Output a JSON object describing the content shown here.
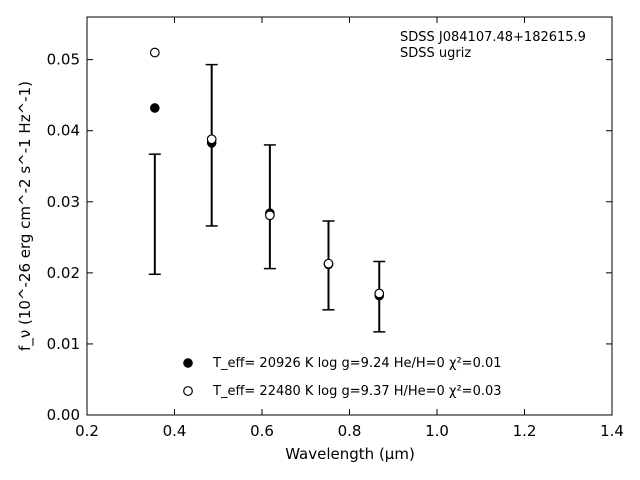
{
  "chart_data": {
    "type": "scatter",
    "xlabel": "Wavelength (μm)",
    "ylabel": "f_ν (10^-26 erg cm^-2 s^-1 Hz^-1)",
    "xlim": [
      0.2,
      1.4
    ],
    "ylim": [
      0.0,
      0.056
    ],
    "x_ticks": [
      "0.2",
      "0.4",
      "0.6",
      "0.8",
      "1.0",
      "1.2",
      "1.4"
    ],
    "y_ticks": [
      "0.00",
      "0.01",
      "0.02",
      "0.03",
      "0.04",
      "0.05"
    ],
    "grid": false,
    "legend_position": "bottom-center",
    "annotations": [
      "SDSS J084107.48+182615.9",
      "SDSS ugriz"
    ],
    "observed": {
      "x": [
        0.355,
        0.485,
        0.618,
        0.752,
        0.868
      ],
      "low": [
        0.0198,
        0.0266,
        0.0206,
        0.0148,
        0.0117
      ],
      "high": [
        0.0367,
        0.0493,
        0.038,
        0.0273,
        0.0216
      ]
    },
    "series": [
      {
        "marker": "filled-circle",
        "legend": "T_eff= 20926 K  log g=9.24  He/H=0  χ²=0.01",
        "x": [
          0.355,
          0.485,
          0.618,
          0.752,
          0.868
        ],
        "y": [
          0.0432,
          0.0383,
          0.0284,
          0.0212,
          0.0168
        ]
      },
      {
        "marker": "open-circle",
        "legend": "T_eff= 22480 K  log g=9.37  H/He=0  χ²=0.03",
        "x": [
          0.355,
          0.485,
          0.618,
          0.752,
          0.868
        ],
        "y": [
          0.051,
          0.0388,
          0.0281,
          0.0213,
          0.0171
        ]
      }
    ],
    "legend": {
      "model1": {
        "teff_label": "T_eff= 20926 K  log g=9.24  He/H=0  χ²=0.01"
      },
      "model2": {
        "teff_label": "T_eff= 22480 K  log g=9.37  H/He=0  χ²=0.03"
      }
    }
  }
}
